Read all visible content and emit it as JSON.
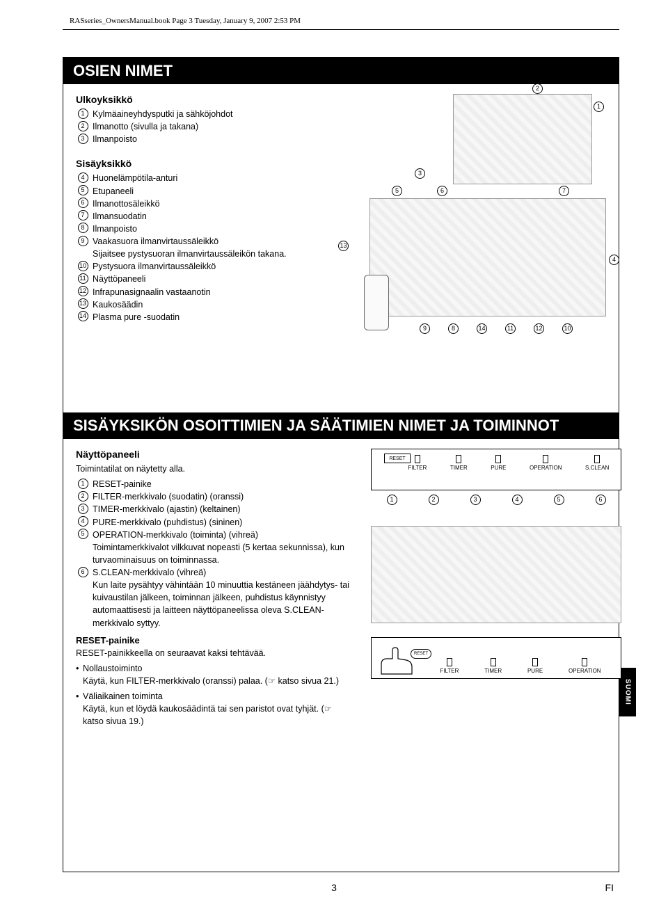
{
  "header": "RASseries_OwnersManual.book  Page 3  Tuesday, January 9, 2007  2:53 PM",
  "side_tab": "SUOMI",
  "footer": {
    "page": "3",
    "lang": "FI"
  },
  "section1": {
    "title": "OSIEN NIMET",
    "outdoor": {
      "heading": "Ulkoyksikkö",
      "items": [
        "Kylmäaineyhdysputki ja sähköjohdot",
        "Ilmanotto (sivulla ja takana)",
        "Ilmanpoisto"
      ]
    },
    "indoor": {
      "heading": "Sisäyksikkö",
      "items": [
        "Huonelämpötila-anturi",
        "Etupaneeli",
        "Ilmanottosäleikkö",
        "Ilmansuodatin",
        "Ilmanpoisto",
        "Vaakasuora ilmanvirtaussäleikkö\nSijaitsee pystysuoran ilmanvirtaussäleikön takana.",
        "Pystysuora ilmanvirtaussäleikkö",
        "Näyttöpaneeli",
        "Infrapunasignaalin vastaanotin",
        "Kaukosäädin",
        "Plasma pure -suodatin"
      ]
    },
    "callouts_outdoor": [
      "2",
      "1",
      "3"
    ],
    "callouts_indoor_top": [
      "5",
      "6",
      "7"
    ],
    "callouts_indoor_left": "13",
    "callouts_indoor_right": "4",
    "callouts_indoor_bottom": [
      "9",
      "8",
      "14",
      "11",
      "12",
      "10"
    ]
  },
  "section2": {
    "title": "SISÄYKSIKÖN OSOITTIMIEN JA SÄÄTIMIEN NIMET JA TOIMINNOT",
    "panel_heading": "Näyttöpaneeli",
    "panel_intro": "Toimintatilat on näytetty alla.",
    "items": [
      "RESET-painike",
      "FILTER-merkkivalo (suodatin) (oranssi)",
      "TIMER-merkkivalo (ajastin) (keltainen)",
      "PURE-merkkivalo (puhdistus) (sininen)",
      "OPERATION-merkkivalo (toiminta) (vihreä)\nToimintamerkkivalot vilkkuvat nopeasti (5 kertaa sekunnissa), kun turvaominaisuus on toiminnassa.",
      "S.CLEAN-merkkivalo (vihreä)\nKun laite pysähtyy vähintään 10 minuuttia kestäneen jäähdytys- tai kuivaustilan jälkeen, toiminnan jälkeen, puhdistus käynnistyy automaattisesti ja laitteen näyttöpaneelissa oleva S.CLEAN-merkkivalo syttyy."
    ],
    "reset_heading": "RESET-painike",
    "reset_intro": "RESET-painikkeella on seuraavat kaksi tehtävää.",
    "reset_bullets": [
      "Nollaustoiminto\nKäytä, kun FILTER-merkkivalo (oranssi) palaa. (☞ katso sivua 21.)",
      "Väliaikainen toiminta\nKäytä, kun et löydä kaukosäädintä tai sen paristot ovat tyhjät. (☞ katso sivua 19.)"
    ],
    "panel_labels": [
      "RESET",
      "FILTER",
      "TIMER",
      "PURE",
      "OPERATION",
      "S.CLEAN"
    ],
    "panel_callouts": [
      "1",
      "2",
      "3",
      "4",
      "5",
      "6"
    ],
    "press_labels": [
      "FILTER",
      "TIMER",
      "PURE",
      "OPERATION"
    ],
    "press_reset": "RESET"
  },
  "colors": {
    "bg": "#ffffff",
    "text": "#000000",
    "title_bar_bg": "#000000",
    "title_bar_fg": "#ffffff",
    "diagram_border": "#999999"
  }
}
